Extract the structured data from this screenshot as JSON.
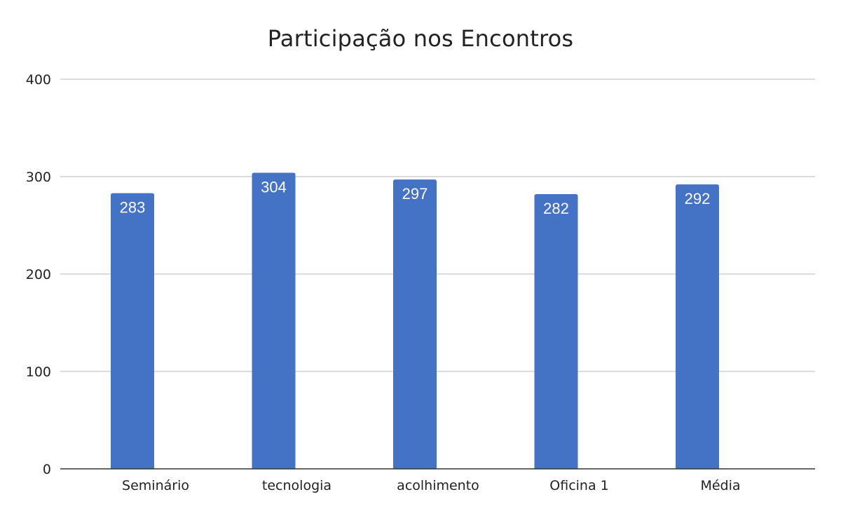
{
  "chart_data": {
    "type": "bar",
    "title": "Participação nos Encontros",
    "xlabel": "",
    "ylabel": "",
    "categories": [
      "Seminário",
      "tecnologia",
      "acolhimento",
      "Oficina 1",
      "Média"
    ],
    "values": [
      283,
      304,
      297,
      282,
      292
    ],
    "ylim": [
      0,
      400
    ],
    "yticks": [
      0,
      100,
      200,
      300,
      400
    ],
    "grid": true,
    "legend": "none",
    "bar_color": "#4472C4",
    "gridline_color": "#C8C8C8",
    "data_labels": true
  }
}
